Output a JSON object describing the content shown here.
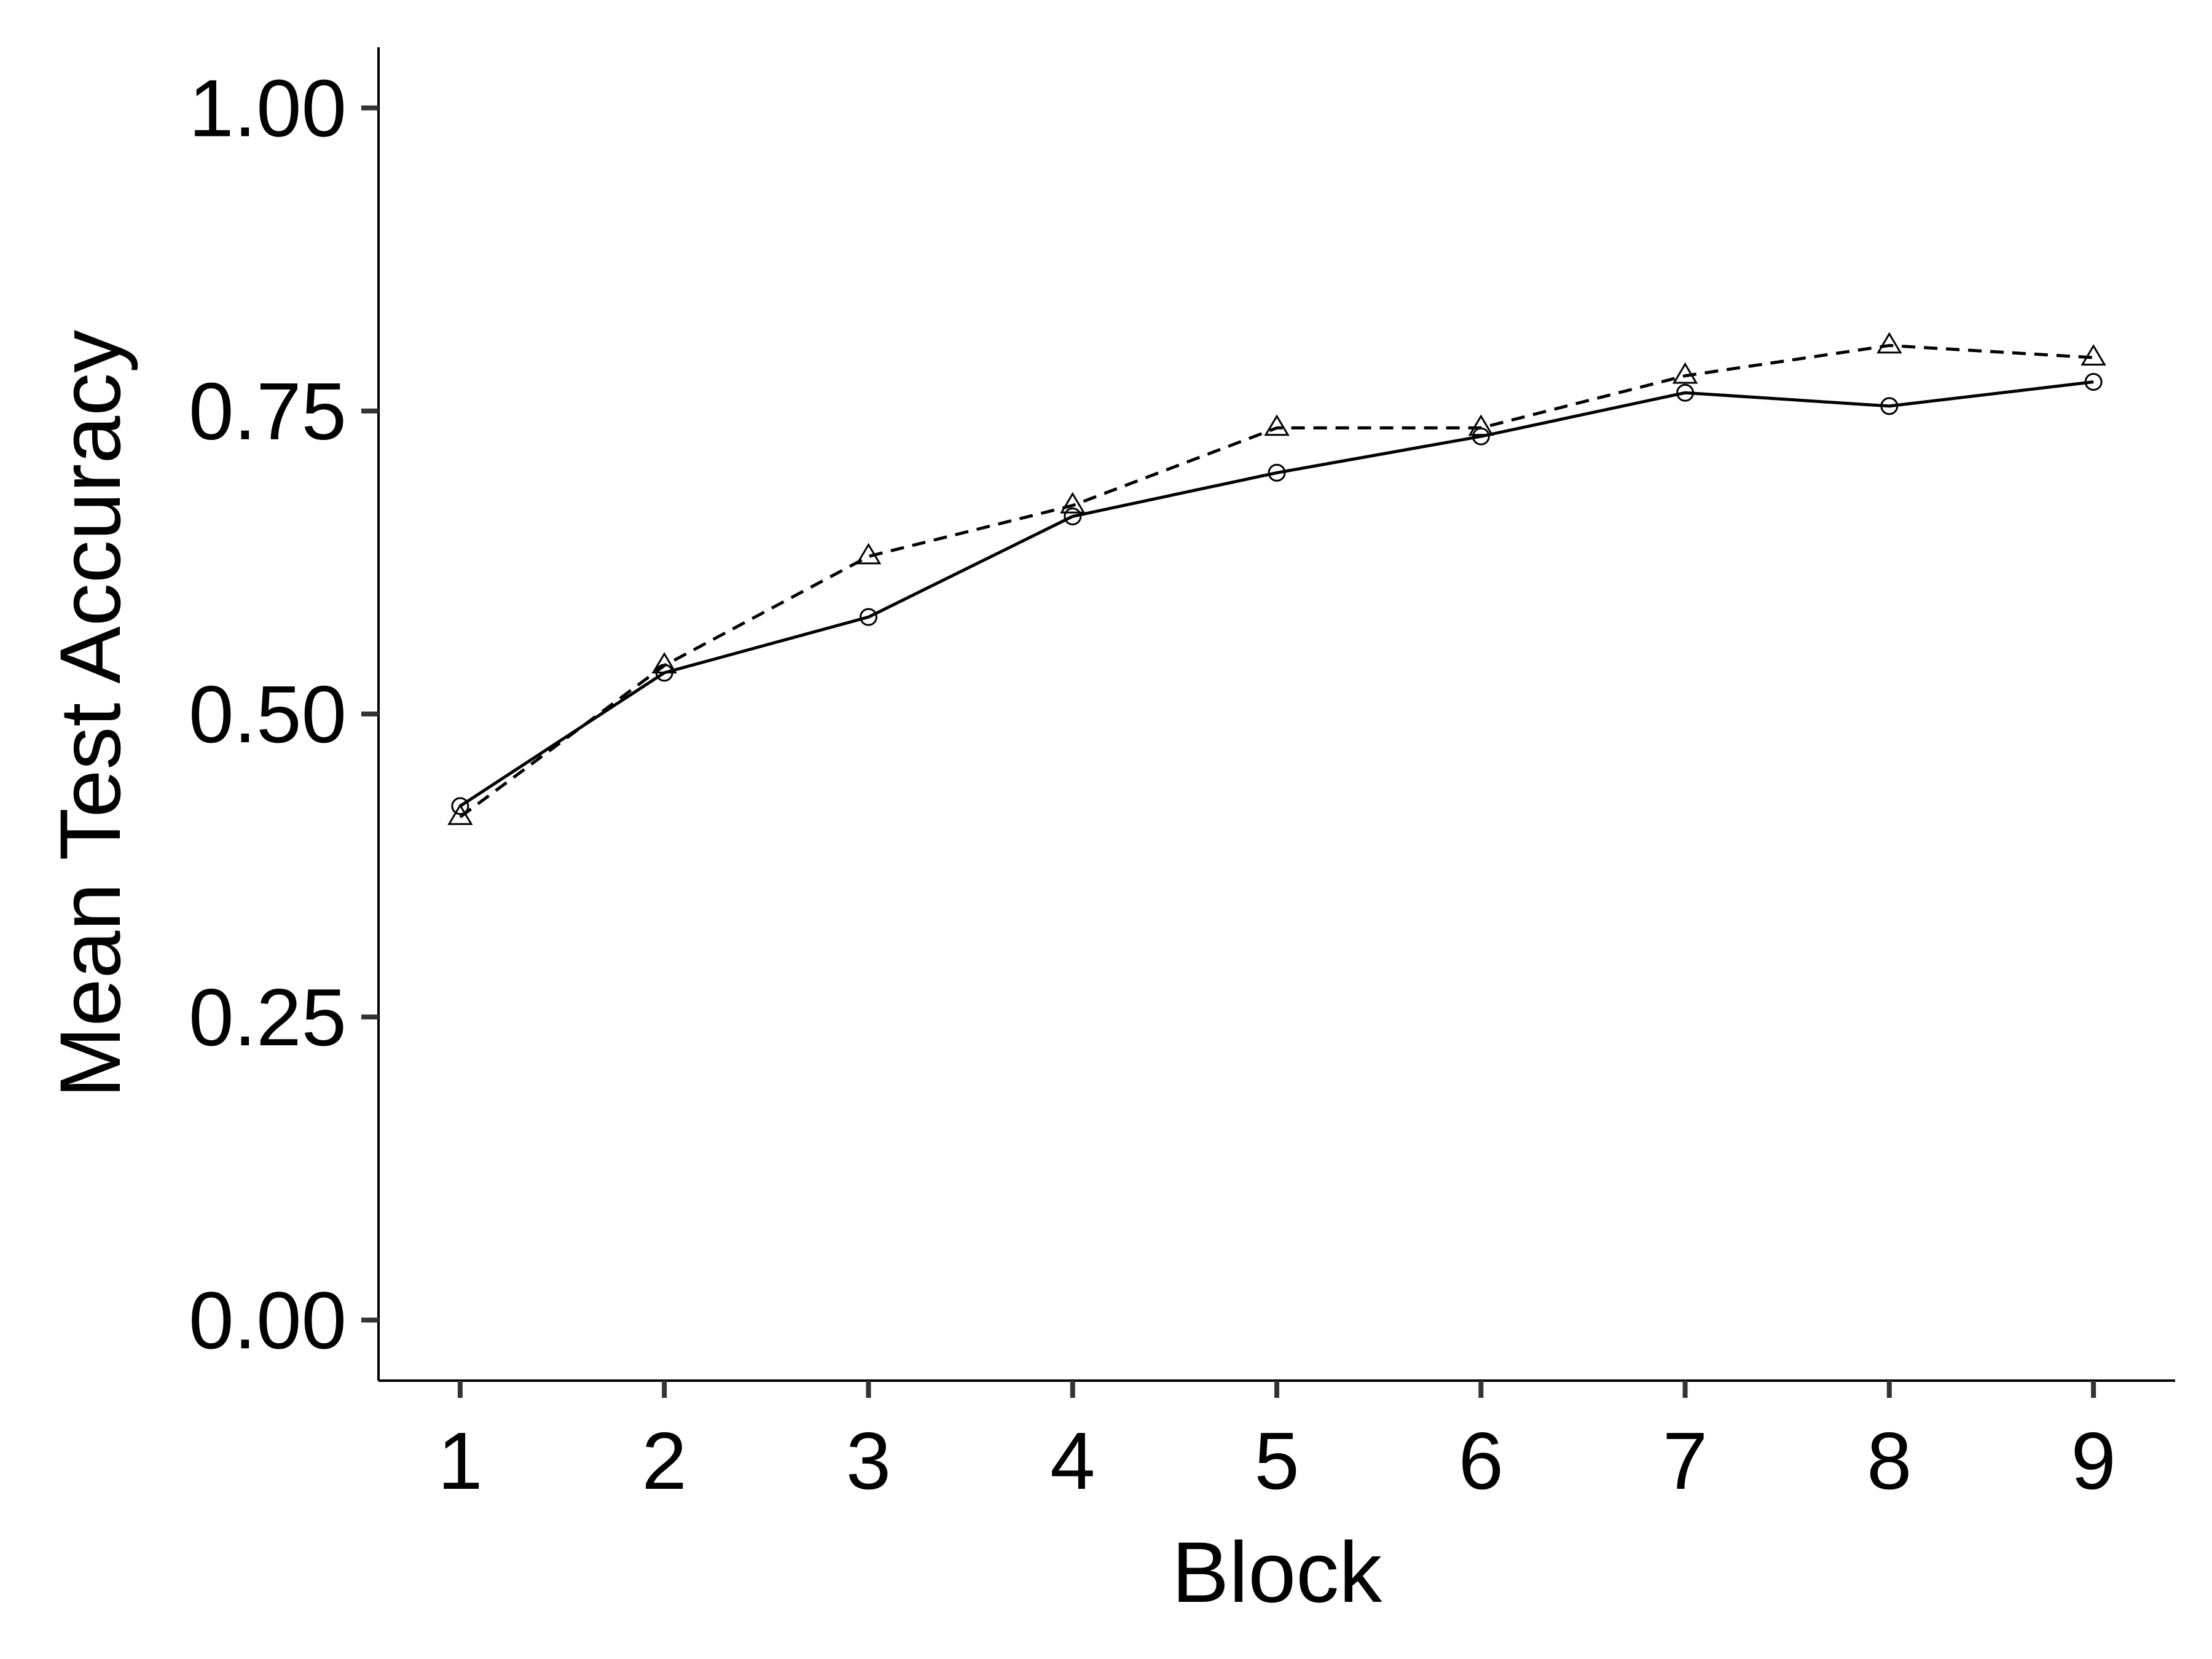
{
  "chart_data": {
    "type": "line",
    "title": "",
    "xlabel": "Block",
    "ylabel": "Mean Test Accuracy",
    "x": [
      1,
      2,
      3,
      4,
      5,
      6,
      7,
      8,
      9
    ],
    "xlim": [
      0.6,
      9.4
    ],
    "ylim": [
      -0.05,
      1.05
    ],
    "x_ticks": [
      "1",
      "2",
      "3",
      "4",
      "5",
      "6",
      "7",
      "8",
      "9"
    ],
    "y_ticks": [
      0.0,
      0.25,
      0.5,
      0.75,
      1.0
    ],
    "y_tick_labels": [
      "0.00",
      "0.25",
      "0.50",
      "0.75",
      "1.00"
    ],
    "grid": false,
    "legend": "none",
    "series": [
      {
        "marker": "circle",
        "line_style": "solid",
        "color": "#000000",
        "values": [
          0.424,
          0.534,
          0.58,
          0.663,
          0.699,
          0.729,
          0.765,
          0.754,
          0.774
        ]
      },
      {
        "marker": "triangle",
        "line_style": "dashed",
        "color": "#000000",
        "values": [
          0.415,
          0.54,
          0.63,
          0.672,
          0.736,
          0.736,
          0.779,
          0.804,
          0.794
        ]
      }
    ]
  }
}
